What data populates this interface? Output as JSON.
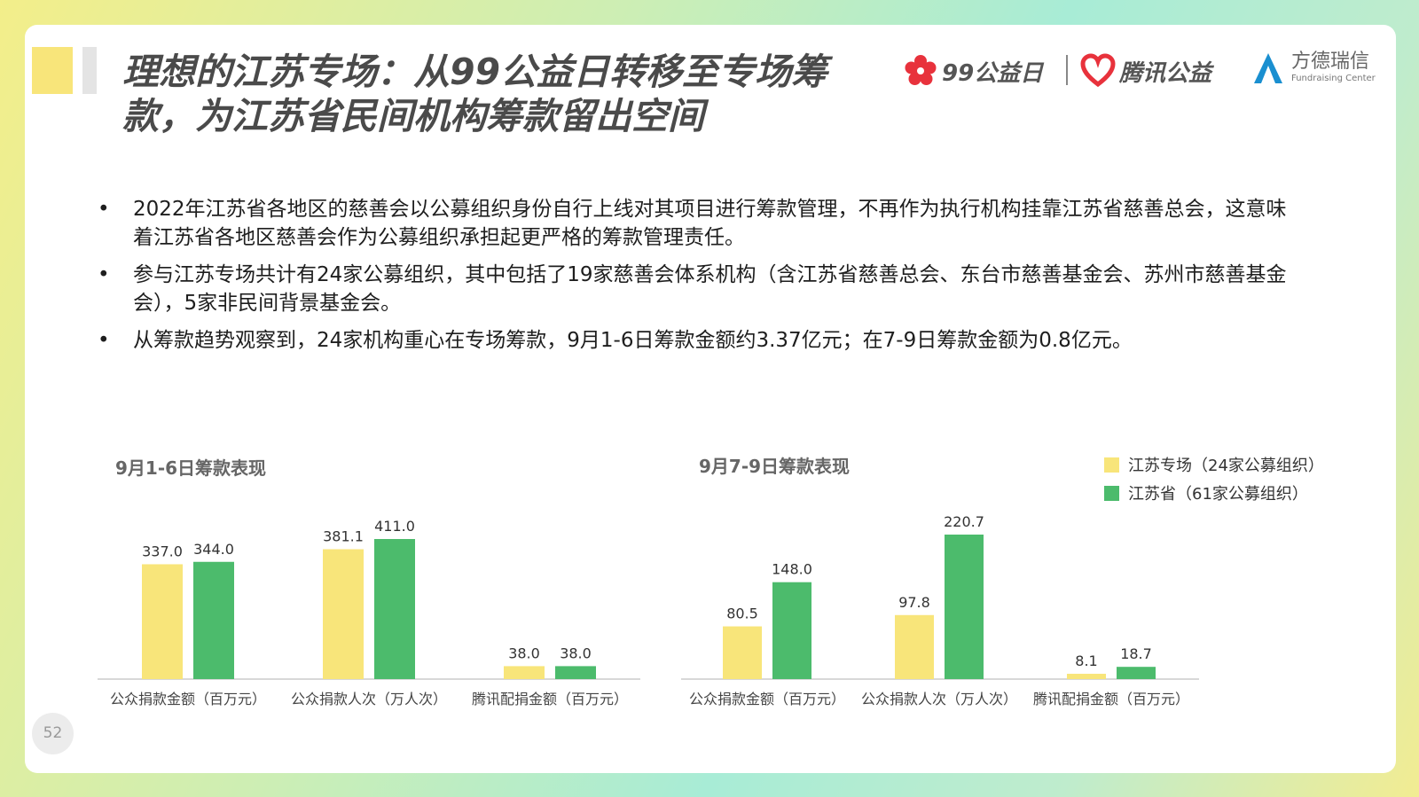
{
  "title": "理想的江苏专场：从99公益日转移至专场筹款，为江苏省民间机构筹款留出空间",
  "logos": {
    "brand_99": "99公益日",
    "brand_tencent": "腾讯公益",
    "brand_fd_cn": "方德瑞信",
    "brand_fd_en": "Fundraising Center"
  },
  "bullets": [
    "2022年江苏省各地区的慈善会以公募组织身份自行上线对其项目进行筹款管理，不再作为执行机构挂靠江苏省慈善总会，这意味着江苏省各地区慈善会作为公募组织承担起更严格的筹款管理责任。",
    "参与江苏专场共计有24家公募组织，其中包括了19家慈善会体系机构（含江苏省慈善总会、东台市慈善基金会、苏州市慈善基金会），5家非民间背景基金会。",
    "从筹款趋势观察到，24家机构重心在专场筹款，9月1-6日筹款金额约3.37亿元；在7-9日筹款金额为0.8亿元。"
  ],
  "bullet_marker": "•",
  "colors": {
    "yellow": "#f8e57a",
    "green": "#4cbb6c",
    "axis": "#cccccc"
  },
  "page_number": "52",
  "chart_data": [
    {
      "type": "bar",
      "title": "9月1-6日筹款表现",
      "categories": [
        "公众捐款金额（百万元）",
        "公众捐款人次（万人次）",
        "腾讯配捐金额（百万元）"
      ],
      "series": [
        {
          "name": "江苏专场（24家公募组织）",
          "values": [
            337.0,
            381.1,
            38.0
          ],
          "color": "#f8e57a"
        },
        {
          "name": "江苏省（61家公募组织）",
          "values": [
            344.0,
            411.0,
            38.0
          ],
          "color": "#4cbb6c"
        }
      ],
      "ylim": [
        0,
        411.0
      ],
      "grid": false
    },
    {
      "type": "bar",
      "title": "9月7-9日筹款表现",
      "categories": [
        "公众捐款金额（百万元）",
        "公众捐款人次（万人次）",
        "腾讯配捐金额（百万元）"
      ],
      "series": [
        {
          "name": "江苏专场（24家公募组织）",
          "values": [
            80.5,
            97.8,
            8.1
          ],
          "color": "#f8e57a"
        },
        {
          "name": "江苏省（61家公募组织）",
          "values": [
            148.0,
            220.7,
            18.7
          ],
          "color": "#4cbb6c"
        }
      ],
      "ylim": [
        0,
        220.7
      ],
      "grid": false,
      "legend": "top-right"
    }
  ]
}
